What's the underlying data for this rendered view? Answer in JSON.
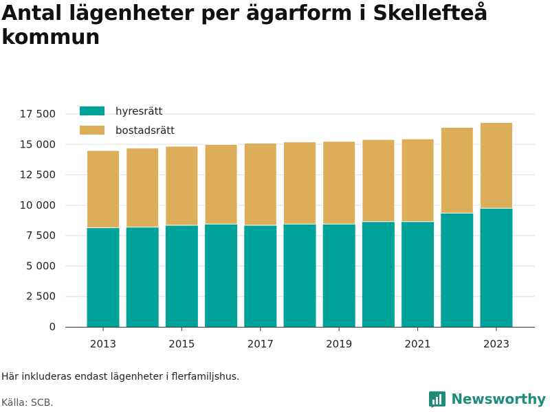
{
  "chart_data": {
    "type": "bar",
    "stacked": true,
    "title": "Antal lägenheter per ägarform i Skellefteå kommun",
    "xlabel": "",
    "ylabel": "",
    "categories": [
      "2013",
      "2014",
      "2015",
      "2016",
      "2017",
      "2018",
      "2019",
      "2020",
      "2021",
      "2022",
      "2023"
    ],
    "x_tick_labels": [
      "2013",
      "2015",
      "2017",
      "2019",
      "2021",
      "2023"
    ],
    "y_ticks": [
      0,
      2500,
      5000,
      7500,
      10000,
      12500,
      15000,
      17500
    ],
    "y_tick_labels": [
      "0",
      "2 500",
      "5 000",
      "7 500",
      "10 000",
      "12 500",
      "15 000",
      "17 500"
    ],
    "ylim": [
      0,
      18000
    ],
    "grid": true,
    "legend_position": "top-left",
    "series": [
      {
        "name": "hyresrätt",
        "color": "#00a39a",
        "values": [
          8150,
          8200,
          8350,
          8450,
          8350,
          8450,
          8450,
          8650,
          8650,
          9350,
          9750
        ]
      },
      {
        "name": "bostadsrätt",
        "color": "#dcae5a",
        "values": [
          6350,
          6500,
          6500,
          6550,
          6750,
          6750,
          6800,
          6750,
          6800,
          7050,
          7050
        ]
      }
    ]
  },
  "note": "Här inkluderas endast lägenheter i flerfamiljshus.",
  "source": "Källa: SCB.",
  "brand": {
    "name": "Newsworthy",
    "icon": "newsworthy-logo-icon",
    "color": "#1f8c7a"
  }
}
